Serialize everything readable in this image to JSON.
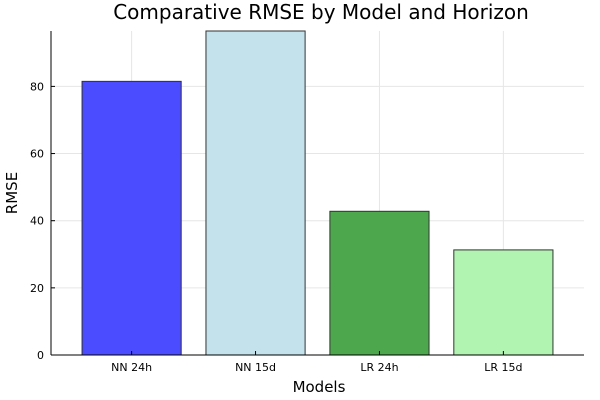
{
  "chart_data": {
    "type": "bar",
    "title": "Comparative RMSE by Model and Horizon",
    "xlabel": "Models",
    "ylabel": "RMSE",
    "categories": [
      "NN 24h",
      "NN 15d",
      "LR 24h",
      "LR 15d"
    ],
    "values": [
      81.5,
      96.5,
      42.8,
      31.3
    ],
    "colors": [
      "#4b4bff",
      "#c4e2ec",
      "#4da84d",
      "#b1f4b1"
    ],
    "ylim": [
      0,
      96.5
    ],
    "yticks": [
      0,
      20,
      40,
      60,
      80
    ],
    "grid": true,
    "legend": "none"
  }
}
